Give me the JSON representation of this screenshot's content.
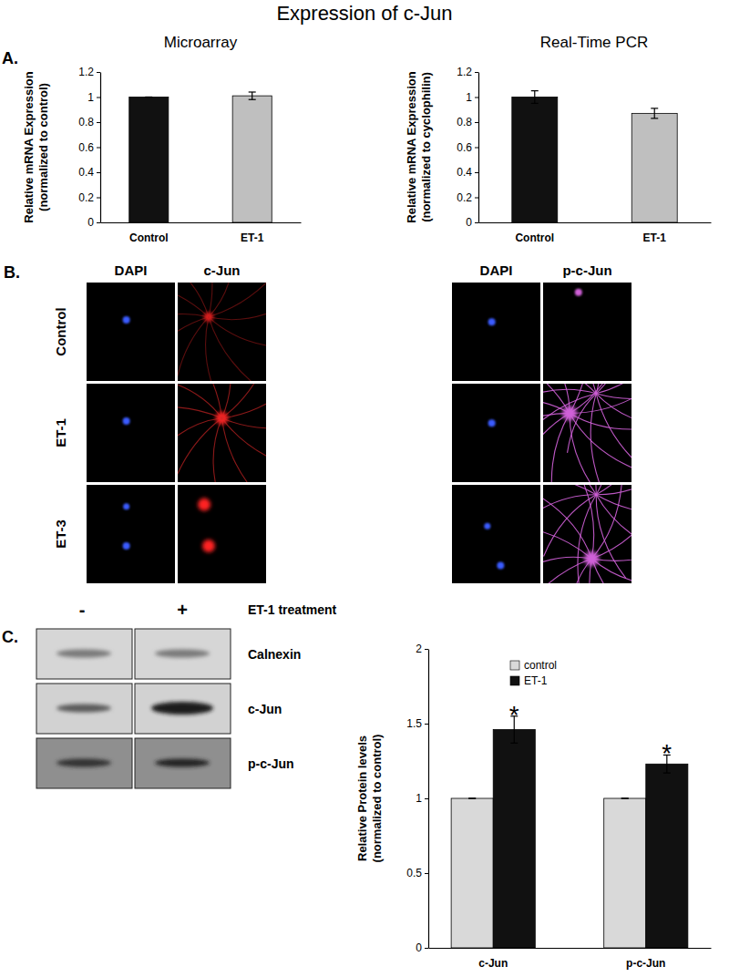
{
  "title": "Expression of c-Jun",
  "panels": [
    "A.",
    "B.",
    "C."
  ],
  "chart_data": [
    {
      "type": "bar",
      "title": "Microarray",
      "y_label": [
        "Relative mRNA Expression",
        "(normalized to control)"
      ],
      "categories": [
        "Control",
        "ET-1"
      ],
      "values": [
        1,
        1.01
      ],
      "errors": [
        0,
        0.03
      ],
      "colors": [
        "#111111",
        "#bfbfbf"
      ],
      "ylim": [
        0,
        1.2
      ],
      "yticks": [
        0,
        0.2,
        0.4,
        0.6,
        0.8,
        1,
        1.2
      ],
      "grid": false
    },
    {
      "type": "bar",
      "title": "Real-Time PCR",
      "y_label": [
        "Relative mRNA Expression",
        "(normalized to cyclophilin)"
      ],
      "categories": [
        "Control",
        "ET-1"
      ],
      "values": [
        1.0,
        0.87
      ],
      "errors": [
        0.05,
        0.04
      ],
      "colors": [
        "#111111",
        "#bfbfbf"
      ],
      "ylim": [
        0,
        1.2
      ],
      "yticks": [
        0,
        0.2,
        0.4,
        0.6,
        0.8,
        1,
        1.2
      ],
      "grid": false
    },
    {
      "type": "bar",
      "y_label": [
        "Relative Protein levels",
        "(normalized to control)"
      ],
      "categories": [
        "c-Jun",
        "p-c-Jun"
      ],
      "series": [
        {
          "name": "control",
          "color": "#d9d9d9",
          "values": [
            1,
            1
          ],
          "errors": [
            0,
            0
          ]
        },
        {
          "name": "ET-1",
          "color": "#111111",
          "values": [
            1.46,
            1.23
          ],
          "errors": [
            0.09,
            0.06
          ],
          "annotations": [
            "*",
            "*"
          ]
        }
      ],
      "ylim": [
        0,
        2
      ],
      "yticks": [
        0,
        0.5,
        1,
        1.5,
        2
      ],
      "grid": false,
      "legend": "top-left"
    }
  ],
  "micrographs": {
    "rows": [
      "Control",
      "ET-1",
      "ET-3"
    ],
    "groups": [
      [
        "DAPI",
        "c-Jun"
      ],
      [
        "DAPI",
        "p-c-Jun"
      ]
    ]
  },
  "blot": {
    "treatment": "ET-1 treatment",
    "conditions": [
      "-",
      "+"
    ],
    "bands": [
      "Calnexin",
      "c-Jun",
      "p-c-Jun"
    ]
  }
}
